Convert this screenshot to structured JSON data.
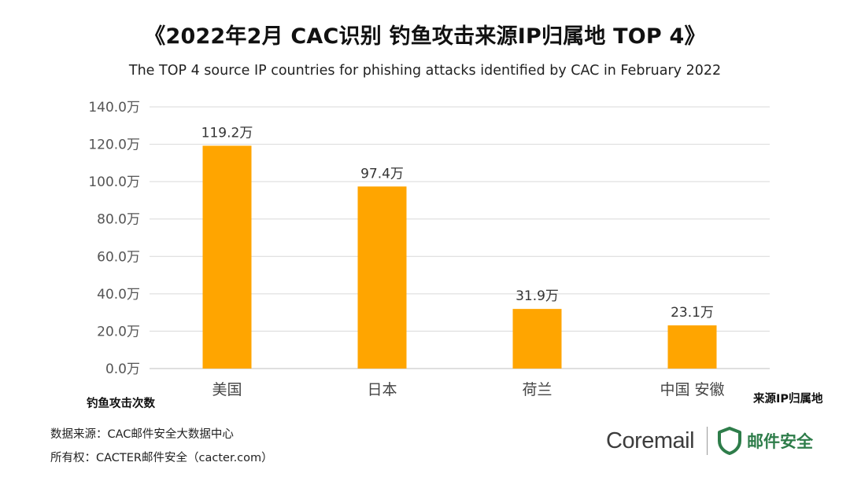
{
  "title": "《2022年2月 CAC识别 钓鱼攻击来源IP归属地 TOP 4》",
  "subtitle": "The TOP 4 source IP countries for phishing attacks identified by CAC in February 2022",
  "chart_data": {
    "type": "bar",
    "categories": [
      "美国",
      "日本",
      "荷兰",
      "中国 安徽"
    ],
    "values": [
      119.2,
      97.4,
      31.9,
      23.1
    ],
    "data_labels": [
      "119.2万",
      "97.4万",
      "31.9万",
      "23.1万"
    ],
    "unit": "万",
    "ylim": [
      0,
      140
    ],
    "yticks": [
      "0.0万",
      "20.0万",
      "40.0万",
      "60.0万",
      "80.0万",
      "100.0万",
      "120.0万",
      "140.0万"
    ],
    "ylabel": "钓鱼攻击次数",
    "xlabel": "来源IP归属地",
    "grid": true,
    "bar_color": "#FFA500"
  },
  "footer": {
    "source": "数据来源：CAC邮件安全大数据中心",
    "copyright": "所有权：CACTER邮件安全（cacter.com）",
    "brand_coremail": "Coremail",
    "brand_cacter": "邮件安全"
  },
  "colors": {
    "brand_green": "#2E7D4A",
    "grid": "#D9D9D9"
  }
}
